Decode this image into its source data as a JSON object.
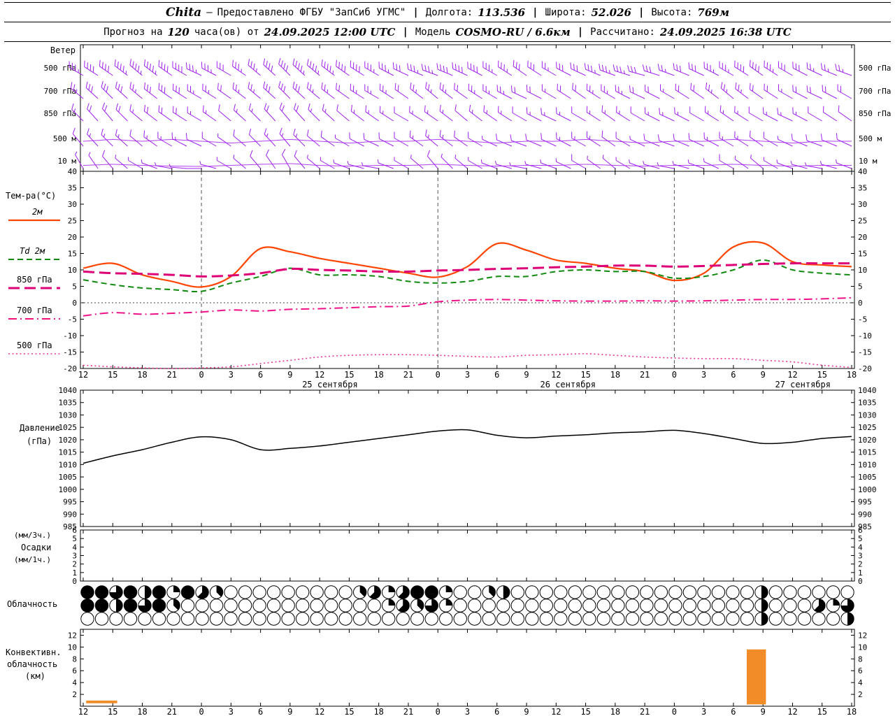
{
  "header": {
    "line1": {
      "station": "Chita",
      "dash": "—",
      "provider": "Предоставлено ФГБУ \"ЗапСиб УГМС\"",
      "sep": "|",
      "lon_label": "Долгота:",
      "lon_value": "113.536",
      "lat_label": "Широта:",
      "lat_value": "52.026",
      "alt_label": "Высота:",
      "alt_value": "769м"
    },
    "line2": {
      "forecast_label": "Прогноз на",
      "hours_value": "120",
      "from_label": "часа(ов) от",
      "run_time": "24.09.2025 12:00 UTC",
      "sep": "|",
      "model_label": "Модель",
      "model_value": "COSMO-RU / 6.6км",
      "calc_label": "Рассчитано:",
      "calc_time": "24.09.2025 16:38 UTC"
    }
  },
  "axis": {
    "hour_labels": [
      "12",
      "15",
      "18",
      "21",
      "0",
      "3",
      "6",
      "9",
      "12",
      "15",
      "18",
      "21",
      "0",
      "3",
      "6",
      "9",
      "12",
      "15",
      "18",
      "21",
      "0",
      "3",
      "6",
      "9",
      "12",
      "15",
      "18"
    ],
    "date_labels": [
      {
        "text": "25 сентября",
        "tick": 8.35
      },
      {
        "text": "26 сентября",
        "tick": 16.4
      },
      {
        "text": "27 сентября",
        "tick": 24.35
      }
    ]
  },
  "chart_data": [
    {
      "type": "wind-barbs",
      "name": "wind",
      "title": "Ветер",
      "color": "#a020f0",
      "levels": [
        {
          "label": "500 гПа",
          "dirs": [
            300,
            305,
            310,
            305,
            295,
            300,
            310,
            315,
            310,
            305,
            300,
            295,
            290,
            295,
            300,
            305,
            300,
            295,
            290,
            285,
            290,
            295,
            300,
            305,
            300,
            295,
            290
          ],
          "speeds": [
            35,
            40,
            45,
            40,
            35,
            30,
            35,
            40,
            45,
            40,
            35,
            30,
            35,
            40,
            35,
            30,
            25,
            30,
            35,
            30,
            25,
            30,
            35,
            40,
            30,
            25,
            25
          ]
        },
        {
          "label": "700 гПа",
          "dirs": [
            310,
            315,
            310,
            305,
            300,
            305,
            310,
            315,
            310,
            305,
            300,
            305,
            310,
            305,
            300,
            295,
            300,
            305,
            300,
            295,
            300,
            305,
            310,
            305,
            300,
            295,
            300
          ],
          "speeds": [
            25,
            30,
            25,
            30,
            25,
            20,
            25,
            30,
            25,
            20,
            25,
            20,
            25,
            20,
            25,
            20,
            15,
            20,
            25,
            20,
            15,
            20,
            25,
            20,
            15,
            20,
            20
          ]
        },
        {
          "label": "850 гПа",
          "dirs": [
            315,
            320,
            310,
            305,
            300,
            310,
            315,
            320,
            315,
            310,
            305,
            300,
            305,
            310,
            305,
            300,
            295,
            300,
            305,
            300,
            295,
            300,
            305,
            300,
            295,
            300,
            305
          ],
          "speeds": [
            15,
            20,
            15,
            20,
            15,
            10,
            15,
            20,
            15,
            10,
            15,
            10,
            15,
            10,
            15,
            10,
            15,
            10,
            15,
            10,
            15,
            10,
            15,
            10,
            15,
            10,
            10
          ]
        },
        {
          "label": "500 м",
          "dirs": [
            320,
            315,
            310,
            300,
            295,
            305,
            315,
            320,
            310,
            300,
            295,
            300,
            310,
            305,
            295,
            290,
            295,
            300,
            305,
            295,
            290,
            295,
            300,
            305,
            295,
            290,
            295
          ],
          "speeds": [
            10,
            15,
            10,
            15,
            10,
            5,
            10,
            15,
            10,
            5,
            10,
            10,
            15,
            10,
            5,
            10,
            10,
            15,
            10,
            5,
            10,
            10,
            15,
            10,
            5,
            10,
            10
          ]
        },
        {
          "label": "10 м",
          "dirs": [
            330,
            320,
            300,
            280,
            270,
            300,
            320,
            330,
            310,
            290,
            280,
            300,
            320,
            310,
            290,
            280,
            290,
            300,
            310,
            290,
            280,
            290,
            300,
            310,
            290,
            280,
            290
          ],
          "speeds": [
            5,
            8,
            5,
            3,
            2,
            5,
            8,
            10,
            5,
            3,
            5,
            5,
            8,
            5,
            3,
            5,
            5,
            8,
            5,
            3,
            5,
            5,
            8,
            5,
            3,
            5,
            5
          ]
        }
      ]
    },
    {
      "type": "line",
      "name": "temperature",
      "title": "Тем-ра(°C)",
      "ylim": [
        -20,
        40
      ],
      "ytick_step": 5,
      "series": [
        {
          "name": "2м",
          "color": "#ff4500",
          "width": 2.2,
          "dash": "",
          "values": [
            10.5,
            12,
            8.5,
            6.5,
            4.8,
            8,
            16.5,
            15.5,
            13.5,
            12,
            10.5,
            9,
            7.8,
            11,
            18,
            16,
            13,
            12,
            10.5,
            9.5,
            6.8,
            9,
            17,
            18.2,
            12.5,
            11.5,
            11
          ]
        },
        {
          "name": "Td 2м",
          "color": "#0f8a0f",
          "width": 2,
          "dash": "8 5",
          "values": [
            7,
            5.5,
            4.5,
            4,
            3.5,
            6,
            8,
            10.5,
            8.5,
            8.5,
            8,
            6.5,
            6,
            6.5,
            8,
            8,
            9.5,
            10,
            9.5,
            9.5,
            7.5,
            8,
            10,
            13,
            10,
            9,
            8.5
          ]
        },
        {
          "name": "850 гПа",
          "color": "#dd0077",
          "width": 3,
          "dash": "16 7",
          "values": [
            9.5,
            9,
            8.8,
            8.5,
            8,
            8.3,
            9,
            10.3,
            10,
            9.8,
            9.5,
            9.5,
            9.8,
            10,
            10.3,
            10.5,
            10.8,
            11,
            11.3,
            11.3,
            11,
            11.2,
            11.5,
            11.8,
            12,
            12,
            12
          ]
        },
        {
          "name": "700 гПа",
          "color": "#ee1188",
          "width": 2,
          "dash": "12 5 2 5",
          "values": [
            -4,
            -3,
            -3.5,
            -3.2,
            -2.8,
            -2.2,
            -2.5,
            -2,
            -1.8,
            -1.5,
            -1.2,
            -1,
            0.3,
            0.8,
            1,
            0.8,
            0.6,
            0.5,
            0.5,
            0.6,
            0.5,
            0.6,
            0.8,
            1,
            1,
            1.2,
            1.5
          ]
        },
        {
          "name": "500 гПа",
          "color": "#ee3399",
          "width": 1.6,
          "dash": "2 3.5",
          "values": [
            -19,
            -19.5,
            -19.8,
            -20,
            -19.8,
            -19.5,
            -18.5,
            -17.5,
            -16.5,
            -16,
            -15.8,
            -15.8,
            -16,
            -16.3,
            -16.5,
            -16,
            -15.8,
            -15.5,
            -16,
            -16.5,
            -16.8,
            -17,
            -17,
            -17.5,
            -18,
            -19,
            -19.7
          ]
        }
      ]
    },
    {
      "type": "line",
      "name": "pressure",
      "titles": [
        "Давление",
        "(гПа)"
      ],
      "ylim": [
        985,
        1040
      ],
      "ytick_step": 5,
      "series": [
        {
          "name": "Давление гПа",
          "color": "#000000",
          "width": 1.5,
          "dash": "",
          "values": [
            1010.5,
            1013.5,
            1016,
            1019,
            1021.2,
            1020,
            1016,
            1016.5,
            1017.5,
            1019,
            1020.5,
            1022,
            1023.5,
            1024,
            1021.8,
            1020.8,
            1021.5,
            1022,
            1022.8,
            1023.2,
            1023.8,
            1022.5,
            1020.5,
            1018.5,
            1019,
            1020.5,
            1021.3
          ]
        }
      ]
    },
    {
      "type": "bar",
      "name": "precipitation",
      "titles": [
        "(мм/3ч.)",
        "Осадки",
        "(мм/1ч.)"
      ],
      "ylim": [
        0,
        6
      ],
      "yticks": [
        6,
        5,
        4,
        3,
        2,
        1,
        0
      ],
      "values": []
    },
    {
      "type": "cloud-symbols",
      "name": "cloudiness",
      "title": "Облачность",
      "okta_rows": [
        [
          8,
          8,
          6,
          8,
          4,
          8,
          2,
          8,
          5,
          3,
          0,
          0,
          0,
          0,
          0,
          0,
          0,
          0,
          0,
          3,
          5,
          2,
          5,
          8,
          8,
          2,
          0,
          0,
          3,
          4,
          0,
          0,
          0,
          0,
          0,
          0,
          0,
          0,
          0,
          0,
          0,
          0,
          0,
          0,
          0,
          0,
          0,
          4,
          0,
          0,
          0,
          0,
          0,
          0
        ],
        [
          8,
          8,
          4,
          8,
          6,
          8,
          3,
          0,
          0,
          0,
          0,
          0,
          0,
          0,
          0,
          0,
          0,
          0,
          0,
          0,
          0,
          2,
          5,
          3,
          6,
          2,
          0,
          0,
          0,
          0,
          0,
          0,
          0,
          0,
          0,
          0,
          0,
          0,
          0,
          0,
          0,
          0,
          0,
          0,
          0,
          0,
          0,
          4,
          0,
          0,
          0,
          5,
          2,
          6
        ],
        [
          0,
          0,
          0,
          0,
          0,
          0,
          0,
          0,
          0,
          0,
          0,
          0,
          0,
          0,
          0,
          0,
          0,
          0,
          0,
          0,
          0,
          0,
          0,
          0,
          0,
          0,
          0,
          0,
          0,
          0,
          0,
          0,
          0,
          0,
          0,
          0,
          0,
          0,
          0,
          0,
          0,
          0,
          0,
          0,
          0,
          0,
          0,
          4,
          0,
          0,
          0,
          0,
          0,
          4
        ]
      ]
    },
    {
      "type": "bar-range",
      "name": "convective",
      "titles": [
        "Конвективн.",
        "облачность",
        "(км)"
      ],
      "ylim": [
        0,
        13
      ],
      "yticks": [
        12,
        10,
        8,
        6,
        4,
        2
      ],
      "color": "#f28c28",
      "bars": [
        {
          "t0": 0.1,
          "t1": 1.15,
          "y0": 0.5,
          "y1": 0.95
        },
        {
          "t0": 22.45,
          "t1": 23.1,
          "y0": 0.3,
          "y1": 9.6
        }
      ]
    }
  ]
}
